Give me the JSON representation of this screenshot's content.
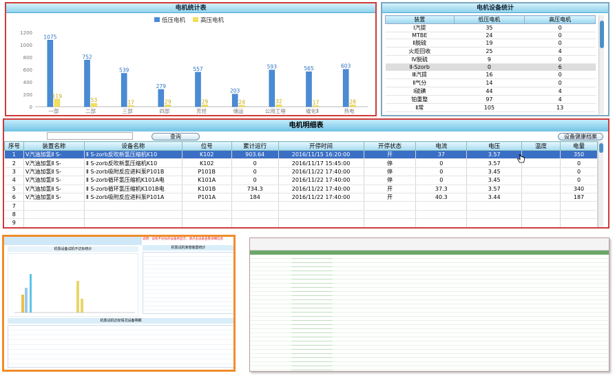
{
  "chart_panel": {
    "title": "电机统计表"
  },
  "chart_data": {
    "type": "bar",
    "categories": [
      "一部",
      "二部",
      "三部",
      "四部",
      "芳烃",
      "储运",
      "公用工程",
      "催化Ⅱ",
      "热电"
    ],
    "series": [
      {
        "name": "低压电机",
        "values": [
          1075,
          752,
          539,
          279,
          557,
          203,
          593,
          565,
          603
        ],
        "color": "#4a8bd6"
      },
      {
        "name": "高压电机",
        "values": [
          119,
          53,
          17,
          29,
          29,
          24,
          32,
          17,
          28
        ],
        "color": "#f2e05a"
      }
    ],
    "ylim": [
      0,
      1200
    ],
    "yticks": [
      0,
      200,
      400,
      600,
      800,
      1000,
      1200
    ],
    "legend": "top-center",
    "grid": false
  },
  "stats_panel": {
    "title": "电机设备统计",
    "headers": [
      "装置",
      "低压电机",
      "高压电机"
    ],
    "rows": [
      [
        "Ⅰ汽提",
        "35",
        "0"
      ],
      [
        "MTBE",
        "24",
        "0"
      ],
      [
        "Ⅱ脱硫",
        "19",
        "0"
      ],
      [
        "火炬回收",
        "25",
        "4"
      ],
      [
        "Ⅳ脱硫",
        "9",
        "0"
      ],
      [
        "Ⅱ-Szorb",
        "0",
        "6"
      ],
      [
        "Ⅲ汽提",
        "16",
        "0"
      ],
      [
        "Ⅱ气分",
        "14",
        "0"
      ],
      [
        "Ⅰ硫磺",
        "44",
        "4"
      ],
      [
        "铂重整",
        "97",
        "4"
      ],
      [
        "Ⅱ常",
        "105",
        "13"
      ]
    ],
    "selected_row": 5
  },
  "detail_panel": {
    "title": "电机明细表",
    "query_label": "查询",
    "health_label": "设备健康档案",
    "headers": [
      "序号",
      "装置名称",
      "设备名称",
      "位号",
      "累计运行",
      "开停时间",
      "开停状态",
      "电流",
      "电压",
      "温度",
      "电量"
    ],
    "rows": [
      [
        "1",
        "Ⅴ汽油加氢Ⅱ S-",
        "Ⅱ S-zorb反吹新氢压缩机K10",
        "K102",
        "903.64",
        "2016/11/15 16:20:00",
        "开",
        "37",
        "3.57",
        "",
        "350"
      ],
      [
        "2",
        "Ⅴ汽油加氢Ⅱ S-",
        "Ⅱ S-zorb反吹新氢压缩机K10",
        "K102",
        "0",
        "2016/11/17 15:45:00",
        "停",
        "0",
        "3.57",
        "",
        "0"
      ],
      [
        "3",
        "Ⅴ汽油加氢Ⅱ S-",
        "Ⅱ S-zorb吸附反应进料泵P101B",
        "P101B",
        "0",
        "2016/11/22 17:40:00",
        "停",
        "0",
        "3.45",
        "",
        "0"
      ],
      [
        "4",
        "Ⅴ汽油加氢Ⅱ S-",
        "Ⅱ S-zorb循环氢压缩机K101A电",
        "K101A",
        "0",
        "2016/11/22 17:40:00",
        "停",
        "0",
        "3.45",
        "",
        "0"
      ],
      [
        "5",
        "Ⅴ汽油加氢Ⅱ S-",
        "Ⅱ S-zorb循环氢压缩机K101B电",
        "K101B",
        "734.3",
        "2016/11/22 17:40:00",
        "开",
        "37.3",
        "3.57",
        "",
        "340"
      ],
      [
        "6",
        "Ⅴ汽油加氢Ⅱ S-",
        "Ⅱ S-zorb吸附反应进料泵P101A",
        "P101A",
        "184",
        "2016/11/22 17:40:00",
        "开",
        "40.3",
        "3.44",
        "",
        "187"
      ],
      [
        "7",
        "",
        "",
        "",
        "",
        "",
        "",
        "",
        "",
        "",
        ""
      ],
      [
        "8",
        "",
        "",
        "",
        "",
        "",
        "",
        "",
        "",
        "",
        ""
      ],
      [
        "9",
        "",
        "",
        "",
        "",
        "",
        "",
        "",
        "",
        "",
        ""
      ]
    ],
    "selected_row": 0
  },
  "thumb_left": {
    "chart_title": "机泵设备试机不达标统计",
    "right_title": "机泵试机率按装置统计",
    "bottom_title": "机泵试机达标情况设备明细",
    "warning": "说明：试机不达标的设备将显示，请点击设备查看详细信息"
  },
  "thumb_right": {}
}
